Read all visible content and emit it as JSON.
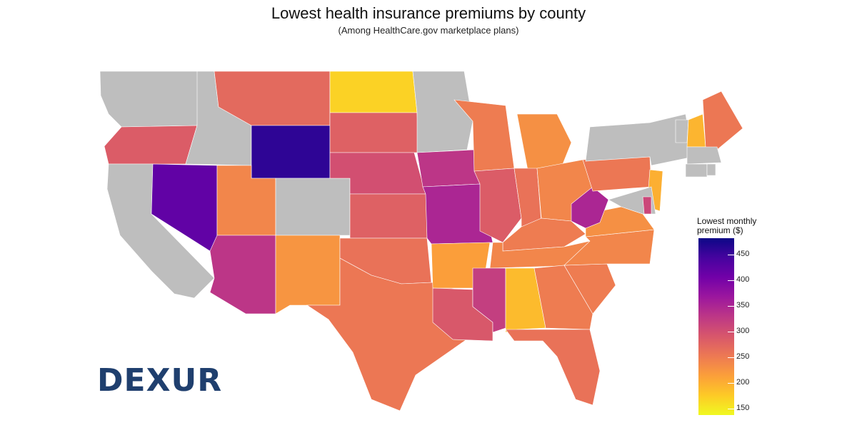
{
  "title": "Lowest health insurance premiums by county",
  "subtitle": "(Among HealthCare.gov marketplace plans)",
  "logo": {
    "text": "DEXUR",
    "color": "#1f3f6e"
  },
  "legend": {
    "title_line1": "Lowest monthly",
    "title_line2": "premium ($)",
    "min": 138,
    "max": 482,
    "ticks": [
      "150",
      "200",
      "250",
      "300",
      "350",
      "400",
      "450"
    ],
    "tick_values": [
      150,
      200,
      250,
      300,
      350,
      400,
      450
    ],
    "colors": [
      "#f0f921",
      "#fdca26",
      "#fb9f3a",
      "#ed7953",
      "#d8576b",
      "#bd3786",
      "#9c179e",
      "#7201a8",
      "#46039f",
      "#0d0887"
    ]
  },
  "map": {
    "no_data_color": "#bebebe",
    "states": [
      {
        "name": "Washington",
        "value": null
      },
      {
        "name": "Oregon",
        "value": 285
      },
      {
        "name": "California",
        "value": null
      },
      {
        "name": "Idaho",
        "value": null
      },
      {
        "name": "Nevada",
        "value": 420
      },
      {
        "name": "Montana",
        "value": 270
      },
      {
        "name": "Wyoming",
        "value": 460
      },
      {
        "name": "Utah",
        "value": 240
      },
      {
        "name": "Arizona",
        "value": 330
      },
      {
        "name": "Colorado",
        "value": null
      },
      {
        "name": "New Mexico",
        "value": 225
      },
      {
        "name": "North Dakota",
        "value": 170
      },
      {
        "name": "South Dakota",
        "value": 280
      },
      {
        "name": "Nebraska",
        "value": 300
      },
      {
        "name": "Kansas",
        "value": 280
      },
      {
        "name": "Oklahoma",
        "value": 260
      },
      {
        "name": "Texas",
        "value": 255
      },
      {
        "name": "Minnesota",
        "value": null
      },
      {
        "name": "Iowa",
        "value": 330
      },
      {
        "name": "Missouri",
        "value": 350
      },
      {
        "name": "Arkansas",
        "value": 215
      },
      {
        "name": "Louisiana",
        "value": 290
      },
      {
        "name": "Wisconsin",
        "value": 250
      },
      {
        "name": "Illinois",
        "value": 285
      },
      {
        "name": "Michigan",
        "value": 230
      },
      {
        "name": "Indiana",
        "value": 260
      },
      {
        "name": "Ohio",
        "value": 240
      },
      {
        "name": "Kentucky",
        "value": 250
      },
      {
        "name": "Tennessee",
        "value": 240
      },
      {
        "name": "Mississippi",
        "value": 320
      },
      {
        "name": "Alabama",
        "value": 190
      },
      {
        "name": "Georgia",
        "value": 250
      },
      {
        "name": "Florida",
        "value": 260
      },
      {
        "name": "South Carolina",
        "value": 250
      },
      {
        "name": "North Carolina",
        "value": 240
      },
      {
        "name": "Virginia",
        "value": 230
      },
      {
        "name": "West Virginia",
        "value": 350
      },
      {
        "name": "Pennsylvania",
        "value": 255
      },
      {
        "name": "New York",
        "value": null
      },
      {
        "name": "New Jersey",
        "value": 200
      },
      {
        "name": "Maryland",
        "value": null
      },
      {
        "name": "Delaware",
        "value": 310
      },
      {
        "name": "Vermont",
        "value": null
      },
      {
        "name": "New Hampshire",
        "value": 195
      },
      {
        "name": "Maine",
        "value": 255
      },
      {
        "name": "Massachusetts",
        "value": null
      },
      {
        "name": "Connecticut",
        "value": null
      },
      {
        "name": "Rhode Island",
        "value": null
      }
    ]
  }
}
